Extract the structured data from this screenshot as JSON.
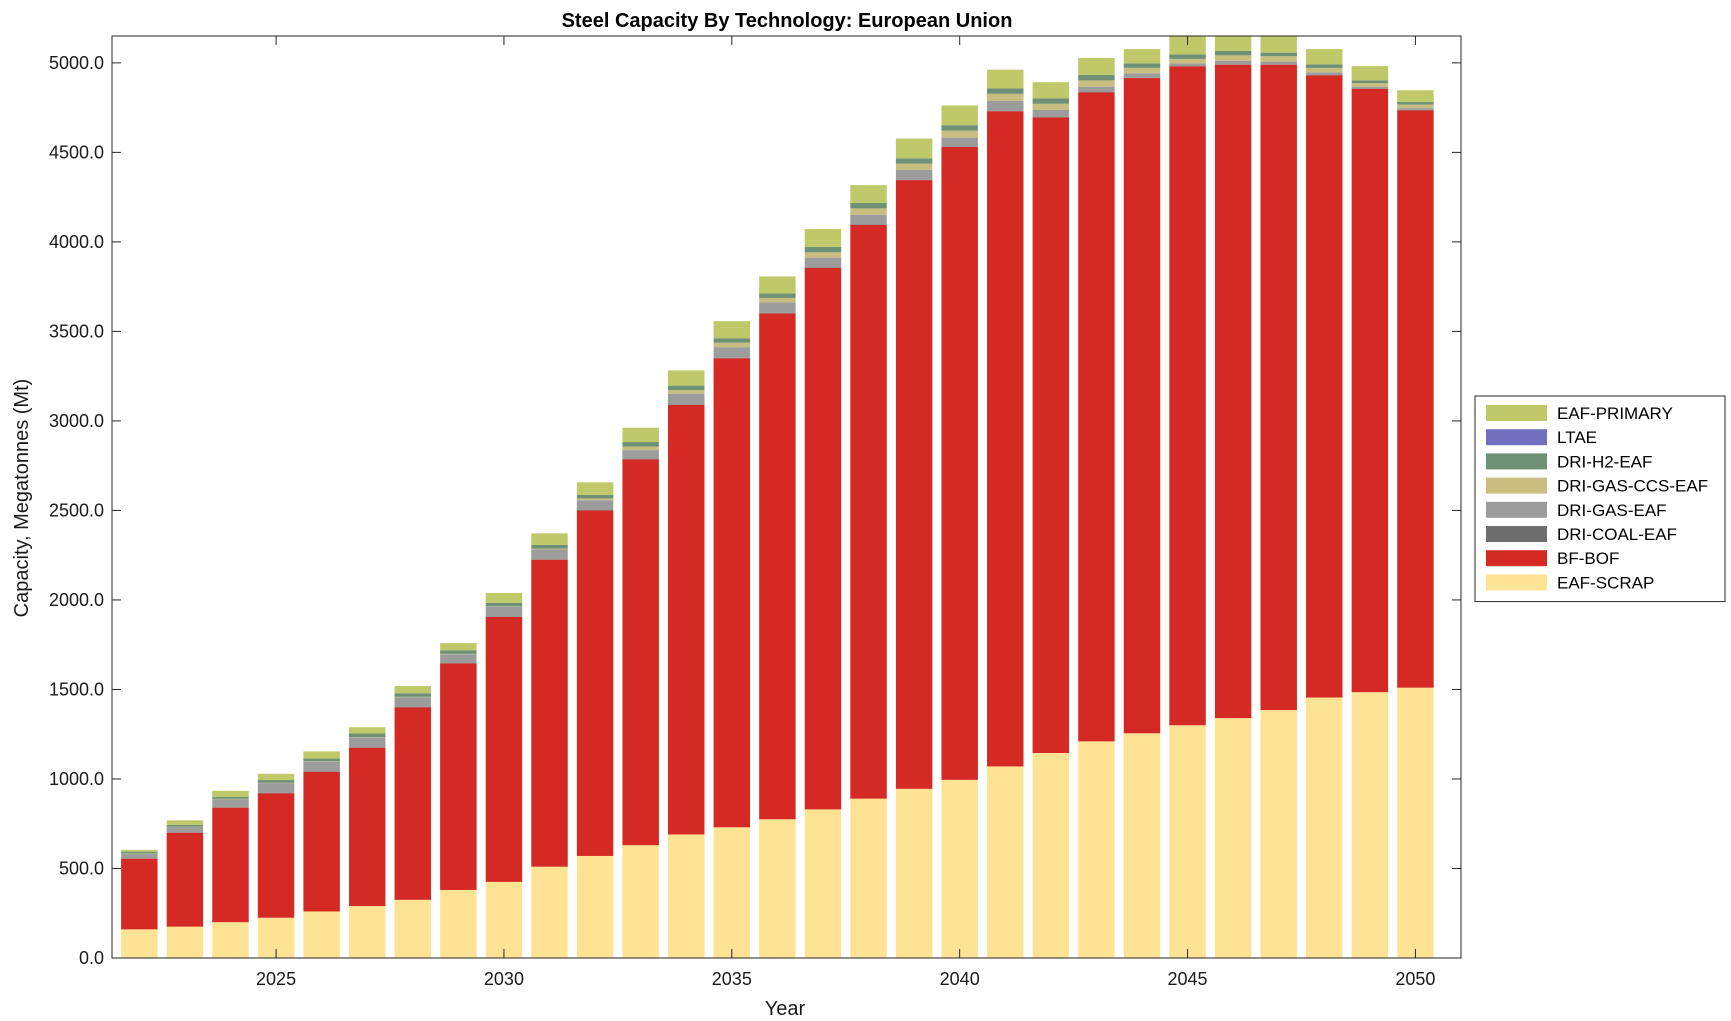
{
  "chart_data": {
    "type": "bar",
    "stacked": true,
    "title": "Steel Capacity By Technology: European Union",
    "xlabel": "Year",
    "ylabel": "Capacity, Megatonnes (Mt)",
    "ylim": [
      0,
      5150
    ],
    "xlim": [
      2021.4,
      2051.0
    ],
    "yticks": [
      "0.0",
      "500.0",
      "1000.0",
      "1500.0",
      "2000.0",
      "2500.0",
      "3000.0",
      "3500.0",
      "4000.0",
      "4500.0",
      "5000.0"
    ],
    "xticks": [
      "2025",
      "2030",
      "2035",
      "2040",
      "2045",
      "2050"
    ],
    "legend_position": "right",
    "categories": [
      2022,
      2023,
      2024,
      2025,
      2026,
      2027,
      2028,
      2029,
      2030,
      2031,
      2032,
      2033,
      2034,
      2035,
      2036,
      2037,
      2038,
      2039,
      2040,
      2041,
      2042,
      2043,
      2044,
      2045,
      2046,
      2047,
      2048,
      2049,
      2050
    ],
    "series": [
      {
        "name": "EAF-SCRAP",
        "color": "#FFE395",
        "values": [
          160,
          175,
          200,
          225,
          260,
          290,
          325,
          380,
          425,
          510,
          570,
          630,
          690,
          730,
          775,
          830,
          890,
          945,
          995,
          1070,
          1145,
          1210,
          1255,
          1300,
          1340,
          1385,
          1455,
          1485,
          1510
        ]
      },
      {
        "name": "BF-BOF",
        "color": "#D42A23",
        "values": [
          395,
          525,
          640,
          695,
          780,
          885,
          1075,
          1265,
          1480,
          1715,
          1930,
          2155,
          2400,
          2620,
          2825,
          3025,
          3205,
          3400,
          3535,
          3660,
          3550,
          3625,
          3660,
          3680,
          3650,
          3605,
          3475,
          3370,
          3225
        ]
      },
      {
        "name": "DRI-COAL-EAF",
        "color": "#6E6E6E",
        "values": [
          2,
          2,
          2,
          2,
          2,
          2,
          2,
          2,
          2,
          2,
          2,
          2,
          2,
          2,
          2,
          2,
          2,
          2,
          2,
          2,
          2,
          2,
          2,
          2,
          2,
          2,
          2,
          2,
          2
        ]
      },
      {
        "name": "DRI-GAS-EAF",
        "color": "#9C9C9C",
        "values": [
          25,
          30,
          45,
          55,
          55,
          55,
          55,
          50,
          55,
          55,
          55,
          50,
          60,
          60,
          60,
          55,
          55,
          55,
          50,
          55,
          40,
          30,
          25,
          15,
          20,
          15,
          15,
          10,
          10
        ]
      },
      {
        "name": "DRI-GAS-CCS-EAF",
        "color": "#C9BD80",
        "values": [
          2,
          2,
          2,
          2,
          2,
          2,
          2,
          2,
          2,
          5,
          10,
          20,
          20,
          25,
          25,
          30,
          35,
          35,
          40,
          40,
          35,
          35,
          30,
          25,
          30,
          30,
          25,
          20,
          20
        ]
      },
      {
        "name": "DRI-H2-EAF",
        "color": "#6E9175",
        "values": [
          10,
          10,
          10,
          15,
          15,
          20,
          20,
          20,
          20,
          20,
          20,
          25,
          25,
          25,
          25,
          30,
          30,
          30,
          30,
          30,
          30,
          30,
          25,
          25,
          25,
          20,
          20,
          15,
          15
        ]
      },
      {
        "name": "LTAE",
        "color": "#736FBF",
        "values": [
          0,
          0,
          0,
          0,
          0,
          0,
          0,
          0,
          0,
          0,
          0,
          0,
          0,
          0,
          0,
          0,
          0,
          0,
          0,
          0,
          0,
          0,
          0,
          0,
          0,
          0,
          0,
          0,
          0
        ]
      },
      {
        "name": "EAF-PRIMARY",
        "color": "#BFC96A",
        "values": [
          10,
          25,
          35,
          35,
          40,
          35,
          40,
          40,
          55,
          65,
          70,
          80,
          85,
          95,
          95,
          100,
          100,
          110,
          110,
          105,
          90,
          95,
          80,
          110,
          120,
          120,
          85,
          80,
          65
        ]
      }
    ]
  }
}
